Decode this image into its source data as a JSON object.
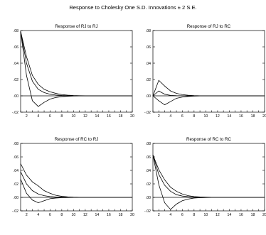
{
  "main_title": "Response to Cholesky One S.D. Innovations ± 2 S.E.",
  "chart_data": [
    {
      "type": "line",
      "title": "Response of RJ to RJ",
      "x": [
        1,
        2,
        3,
        4,
        5,
        6,
        7,
        8,
        9,
        10,
        11,
        12,
        13,
        14,
        15,
        16,
        17,
        18,
        19,
        20
      ],
      "ylim": [
        -0.02,
        0.08
      ],
      "y_ticks": [
        ".08",
        ".06",
        ".04",
        ".02",
        ".00",
        "-.02"
      ],
      "x_ticks": [
        "2",
        "4",
        "6",
        "8",
        "10",
        "12",
        "14",
        "16",
        "18",
        "20"
      ],
      "grid": false,
      "series": [
        {
          "values": [
            0.079,
            0.04,
            0.018,
            0.008,
            0.004,
            0.002,
            0.001,
            0.0005,
            0.0002,
            0.0001,
            0,
            0,
            0,
            0,
            0,
            0,
            0,
            0,
            0,
            0
          ]
        },
        {
          "values": [
            0.079,
            0.048,
            0.025,
            0.014,
            0.008,
            0.005,
            0.003,
            0.0015,
            0.0008,
            0.0004,
            0.0002,
            0.0001,
            0,
            0,
            0,
            0,
            0,
            0,
            0,
            0
          ]
        },
        {
          "values": [
            0.079,
            0.025,
            -0.006,
            -0.013,
            -0.008,
            -0.004,
            -0.002,
            -0.001,
            -0.0005,
            -0.0002,
            -0.0001,
            0,
            0,
            0,
            0,
            0,
            0,
            0,
            0,
            0
          ]
        }
      ]
    },
    {
      "type": "line",
      "title": "Response of RJ to RC",
      "x": [
        1,
        2,
        3,
        4,
        5,
        6,
        7,
        8,
        9,
        10,
        11,
        12,
        13,
        14,
        15,
        16,
        17,
        18,
        19,
        20
      ],
      "ylim": [
        -0.02,
        0.08
      ],
      "y_ticks": [
        ".08",
        ".06",
        ".04",
        ".02",
        ".00",
        "-.02"
      ],
      "x_ticks": [
        "2",
        "4",
        "6",
        "8",
        "10",
        "12",
        "14",
        "16",
        "18",
        "20"
      ],
      "grid": false,
      "series": [
        {
          "values": [
            0,
            0.006,
            0.002,
            0.0005,
            0.0002,
            0.0001,
            0,
            0,
            0,
            0,
            0,
            0,
            0,
            0,
            0,
            0,
            0,
            0,
            0,
            0
          ]
        },
        {
          "values": [
            0,
            0.019,
            0.012,
            0.006,
            0.003,
            0.0015,
            0.0007,
            0.0003,
            0.0001,
            0,
            0,
            0,
            0,
            0,
            0,
            0,
            0,
            0,
            0,
            0
          ]
        },
        {
          "values": [
            0,
            -0.006,
            -0.011,
            -0.007,
            -0.003,
            -0.0015,
            -0.0007,
            -0.0003,
            -0.0001,
            0,
            0,
            0,
            0,
            0,
            0,
            0,
            0,
            0,
            0,
            0
          ]
        }
      ]
    },
    {
      "type": "line",
      "title": "Response of RC to RJ",
      "x": [
        1,
        2,
        3,
        4,
        5,
        6,
        7,
        8,
        9,
        10,
        11,
        12,
        13,
        14,
        15,
        16,
        17,
        18,
        19,
        20
      ],
      "ylim": [
        -0.02,
        0.08
      ],
      "y_ticks": [
        ".08",
        ".06",
        ".04",
        ".02",
        ".00",
        "-.02"
      ],
      "x_ticks": [
        "2",
        "4",
        "6",
        "8",
        "10",
        "12",
        "14",
        "16",
        "18",
        "20"
      ],
      "grid": false,
      "series": [
        {
          "values": [
            0.038,
            0.02,
            0.01,
            0.005,
            0.0025,
            0.0012,
            0.0006,
            0.0003,
            0.0001,
            0,
            0,
            0,
            0,
            0,
            0,
            0,
            0,
            0,
            0,
            0
          ]
        },
        {
          "values": [
            0.05,
            0.033,
            0.023,
            0.017,
            0.01,
            0.006,
            0.003,
            0.0015,
            0.0007,
            0.0003,
            0.0001,
            0,
            0,
            0,
            0,
            0,
            0,
            0,
            0,
            0
          ]
        },
        {
          "values": [
            0.027,
            0.006,
            -0.004,
            -0.008,
            -0.005,
            -0.002,
            -0.001,
            -0.0005,
            -0.0002,
            0,
            0,
            0,
            0,
            0,
            0,
            0,
            0,
            0,
            0,
            0
          ]
        }
      ]
    },
    {
      "type": "line",
      "title": "Response of RC to RC",
      "x": [
        1,
        2,
        3,
        4,
        5,
        6,
        7,
        8,
        9,
        10,
        11,
        12,
        13,
        14,
        15,
        16,
        17,
        18,
        19,
        20
      ],
      "ylim": [
        -0.02,
        0.08
      ],
      "y_ticks": [
        ".08",
        ".06",
        ".04",
        ".02",
        ".00",
        "-.02"
      ],
      "x_ticks": [
        "2",
        "4",
        "6",
        "8",
        "10",
        "12",
        "14",
        "16",
        "18",
        "20"
      ],
      "grid": false,
      "series": [
        {
          "values": [
            0.063,
            0.034,
            0.018,
            0.009,
            0.004,
            0.002,
            0.001,
            0.0005,
            0.0002,
            0.0001,
            0,
            0,
            0,
            0,
            0,
            0,
            0,
            0,
            0,
            0
          ]
        },
        {
          "values": [
            0.063,
            0.041,
            0.026,
            0.015,
            0.009,
            0.005,
            0.0025,
            0.0012,
            0.0006,
            0.0003,
            0.0001,
            0,
            0,
            0,
            0,
            0,
            0,
            0,
            0,
            0
          ]
        },
        {
          "values": [
            0.063,
            0.019,
            -0.008,
            -0.018,
            -0.01,
            -0.005,
            -0.0025,
            -0.001,
            -0.0005,
            -0.0002,
            -0.0001,
            0,
            0,
            0,
            0,
            0,
            0,
            0,
            0,
            0
          ]
        }
      ]
    }
  ]
}
